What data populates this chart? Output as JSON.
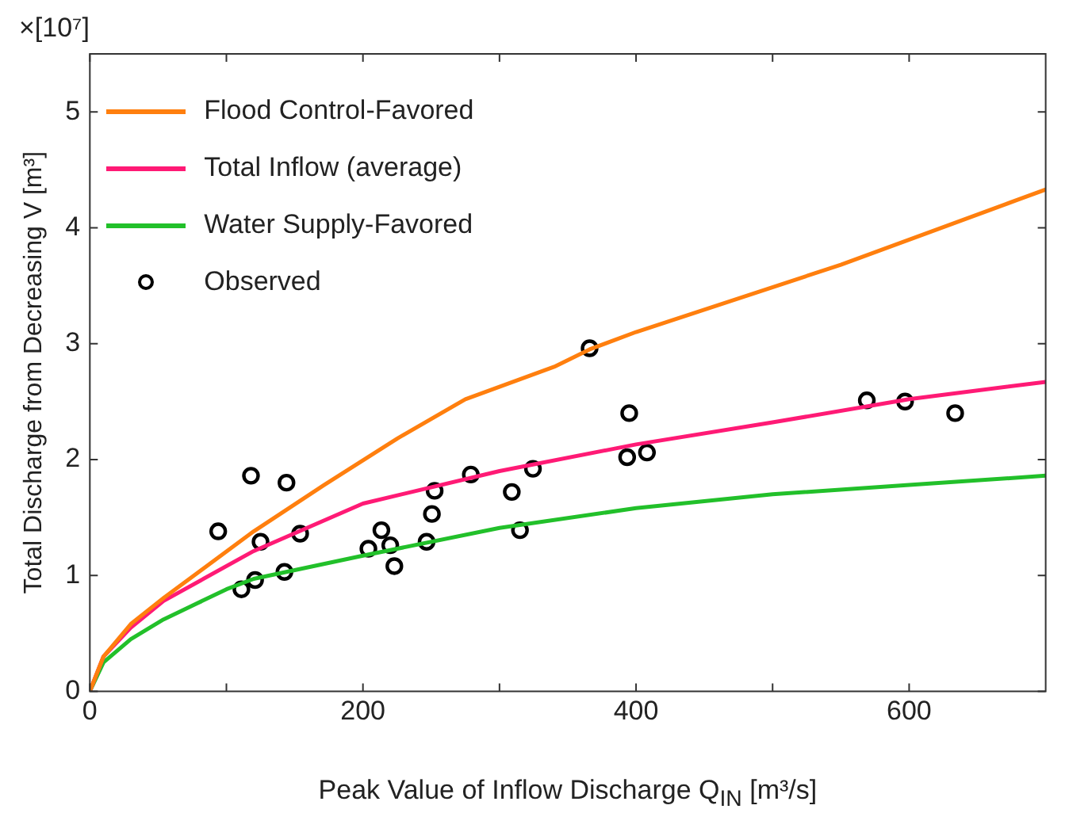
{
  "chart_data": {
    "type": "line",
    "xlabel": "Peak Value of Inflow Discharge Q$_{IN}$ [m³/s]",
    "ylabel": "Total Discharge from Decreasing V [m³]",
    "annotations": [
      "×[10⁷]"
    ],
    "xlim": [
      0,
      700
    ],
    "ylim": [
      0,
      5.5
    ],
    "xticks": [
      0,
      {
        "value": 100,
        "label": null
      },
      200,
      {
        "value": 300,
        "label": null
      },
      400,
      {
        "value": 500,
        "label": null
      },
      600
    ],
    "yticks": [
      0,
      1,
      2,
      3,
      4,
      5
    ],
    "grid": false,
    "legend": "top left",
    "marker": "none",
    "line_style": "solid",
    "series": [
      {
        "name": "Flood Control-Favored",
        "color": "#ff7f0e",
        "x": [
          0,
          10,
          30,
          54.5,
          120,
          171.5,
          225,
          275,
          340,
          366,
          400,
          550,
          700
        ],
        "values": [
          0,
          0.3,
          0.58,
          0.81,
          1.38,
          1.78,
          2.18,
          2.52,
          2.8,
          2.95,
          3.1,
          3.68,
          4.33
        ]
      },
      {
        "name": "Total Inflow (average)",
        "color": "#ff1a75",
        "x": [
          0,
          10,
          30,
          54,
          120,
          200,
          300,
          400,
          500,
          600,
          700
        ],
        "values": [
          0,
          0.3,
          0.55,
          0.78,
          1.21,
          1.62,
          1.9,
          2.13,
          2.32,
          2.52,
          2.67
        ]
      },
      {
        "name": "Water Supply-Favored",
        "color": "#22c02a",
        "x": [
          0,
          10,
          30,
          54,
          100,
          120,
          200,
          300,
          400,
          500,
          600,
          700
        ],
        "values": [
          0,
          0.25,
          0.45,
          0.62,
          0.88,
          0.97,
          1.17,
          1.41,
          1.58,
          1.7,
          1.78,
          1.86
        ]
      },
      {
        "name": "Observed",
        "type": "scatter",
        "color": "#000000",
        "marker": "circle",
        "x": [
          94,
          118,
          125,
          111,
          121,
          144,
          142.5,
          154,
          204,
          213.5,
          220,
          223,
          246.6,
          250.5,
          252.5,
          279,
          309,
          315,
          324.5,
          395,
          393.5,
          408,
          569,
          597,
          633.7,
          366
        ],
        "values": [
          1.38,
          1.86,
          1.29,
          0.88,
          0.96,
          1.8,
          1.03,
          1.36,
          1.23,
          1.39,
          1.26,
          1.08,
          1.29,
          1.53,
          1.73,
          1.87,
          1.72,
          1.39,
          1.92,
          2.4,
          2.02,
          2.06,
          2.51,
          2.5,
          2.4,
          2.96
        ]
      }
    ]
  }
}
